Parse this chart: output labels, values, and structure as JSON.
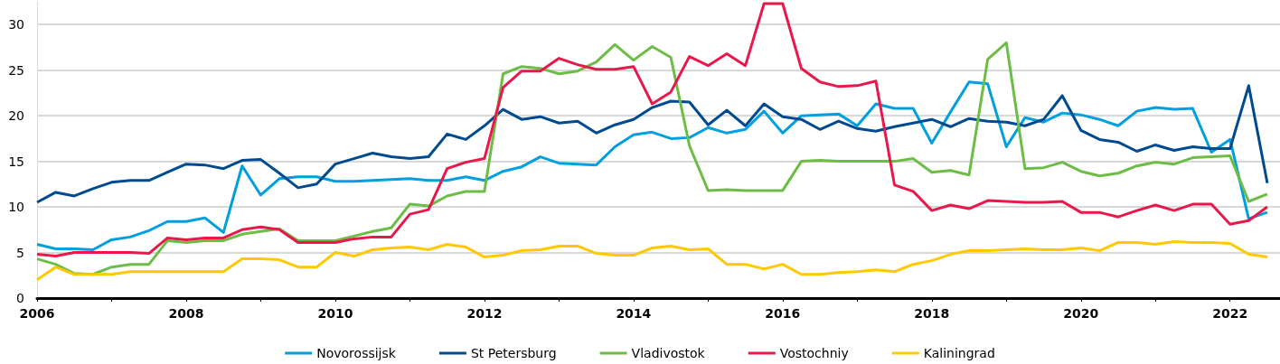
{
  "chart_data": {
    "type": "line",
    "x": [
      2006,
      2006.25,
      2006.5,
      2006.75,
      2007,
      2007.25,
      2007.5,
      2007.75,
      2008,
      2008.25,
      2008.5,
      2008.75,
      2009,
      2009.25,
      2009.5,
      2009.75,
      2010,
      2010.25,
      2010.5,
      2010.75,
      2011,
      2011.25,
      2011.5,
      2011.75,
      2012,
      2012.25,
      2012.5,
      2012.75,
      2013,
      2013.25,
      2013.5,
      2013.75,
      2014,
      2014.25,
      2014.5,
      2014.75,
      2015,
      2015.25,
      2015.5,
      2015.75,
      2016,
      2016.25,
      2016.5,
      2016.75,
      2017,
      2017.25,
      2017.5,
      2017.75,
      2018,
      2018.25,
      2018.5,
      2018.75,
      2019,
      2019.25,
      2019.5,
      2019.75,
      2020,
      2020.25,
      2020.5,
      2020.75,
      2021,
      2021.25,
      2021.5,
      2021.75,
      2022,
      2022.25,
      2022.5
    ],
    "series": [
      {
        "name": "Novorossijsk",
        "color": "#009fdf",
        "values": [
          5.9,
          5.4,
          5.4,
          5.3,
          6.4,
          6.7,
          7.4,
          8.4,
          8.4,
          8.8,
          7.2,
          14.5,
          11.3,
          13.1,
          13.3,
          13.3,
          12.8,
          12.8,
          12.9,
          13.0,
          13.1,
          12.9,
          12.9,
          13.3,
          12.9,
          13.9,
          14.4,
          15.5,
          14.8,
          14.7,
          14.6,
          16.6,
          17.9,
          18.2,
          17.5,
          17.6,
          18.7,
          18.1,
          18.5,
          20.5,
          18.1,
          20.0,
          20.1,
          20.2,
          18.9,
          21.3,
          20.8,
          20.8,
          17.0,
          20.4,
          23.7,
          23.5,
          16.6,
          19.8,
          19.3,
          20.3,
          20.1,
          19.6,
          18.9,
          20.5,
          20.9,
          20.7,
          20.8,
          16.0,
          17.4,
          8.7,
          9.4
        ]
      },
      {
        "name": "St Petersburg",
        "color": "#004a8f",
        "values": [
          10.5,
          11.6,
          11.2,
          12.0,
          12.7,
          12.9,
          12.9,
          13.8,
          14.7,
          14.6,
          14.2,
          15.1,
          15.2,
          13.7,
          12.1,
          12.5,
          14.7,
          15.3,
          15.9,
          15.5,
          15.3,
          15.5,
          18.0,
          17.4,
          18.9,
          20.7,
          19.6,
          19.9,
          19.2,
          19.4,
          18.1,
          19.0,
          19.6,
          20.9,
          21.6,
          21.5,
          19.0,
          20.6,
          18.9,
          21.3,
          19.9,
          19.6,
          18.5,
          19.4,
          18.6,
          18.3,
          18.8,
          19.2,
          19.6,
          18.8,
          19.7,
          19.4,
          19.3,
          18.9,
          19.6,
          22.2,
          18.4,
          17.4,
          17.1,
          16.1,
          16.8,
          16.2,
          16.6,
          16.4,
          16.4,
          23.3,
          12.6
        ]
      },
      {
        "name": "Vladivostok",
        "color": "#6cbd45",
        "values": [
          4.3,
          3.7,
          2.7,
          2.6,
          3.4,
          3.7,
          3.7,
          6.3,
          6.1,
          6.3,
          6.3,
          7.0,
          7.3,
          7.6,
          6.3,
          6.3,
          6.3,
          6.8,
          7.3,
          7.7,
          10.3,
          10.1,
          11.2,
          11.7,
          11.7,
          24.6,
          25.4,
          25.2,
          24.6,
          24.9,
          25.9,
          27.8,
          26.1,
          27.6,
          26.4,
          16.7,
          11.8,
          11.9,
          11.8,
          11.8,
          11.8,
          15.0,
          15.1,
          15.0,
          15.0,
          15.0,
          15.0,
          15.3,
          13.8,
          14.0,
          13.5,
          26.2,
          28.0,
          14.2,
          14.3,
          14.9,
          13.9,
          13.4,
          13.7,
          14.5,
          14.9,
          14.7,
          15.4,
          15.5,
          15.6,
          10.6,
          11.4
        ]
      },
      {
        "name": "Vostochniy",
        "color": "#e8194a",
        "values": [
          4.8,
          4.6,
          5.0,
          5.0,
          5.0,
          5.0,
          4.9,
          6.6,
          6.4,
          6.6,
          6.6,
          7.5,
          7.8,
          7.5,
          6.1,
          6.1,
          6.1,
          6.5,
          6.7,
          6.7,
          9.2,
          9.7,
          14.2,
          14.9,
          15.3,
          23.1,
          24.9,
          24.9,
          26.3,
          25.6,
          25.1,
          25.1,
          25.4,
          21.3,
          22.6,
          26.5,
          25.5,
          26.8,
          25.5,
          32.3,
          32.3,
          25.2,
          23.7,
          23.2,
          23.3,
          23.8,
          12.4,
          11.7,
          9.6,
          10.2,
          9.8,
          10.7,
          10.6,
          10.5,
          10.5,
          10.6,
          9.4,
          9.4,
          8.9,
          9.6,
          10.2,
          9.6,
          10.3,
          10.3,
          8.1,
          8.5,
          10.0
        ]
      },
      {
        "name": "Kaliningrad",
        "color": "#ffc800",
        "values": [
          2.0,
          3.4,
          2.6,
          2.6,
          2.6,
          2.9,
          2.9,
          2.9,
          2.9,
          2.9,
          2.9,
          4.3,
          4.3,
          4.2,
          3.4,
          3.4,
          5.0,
          4.6,
          5.3,
          5.5,
          5.6,
          5.3,
          5.9,
          5.6,
          4.5,
          4.7,
          5.2,
          5.3,
          5.7,
          5.7,
          4.9,
          4.7,
          4.7,
          5.5,
          5.7,
          5.3,
          5.4,
          3.7,
          3.7,
          3.2,
          3.7,
          2.6,
          2.6,
          2.8,
          2.9,
          3.1,
          2.9,
          3.7,
          4.1,
          4.8,
          5.2,
          5.2,
          5.3,
          5.4,
          5.3,
          5.3,
          5.5,
          5.2,
          6.1,
          6.1,
          5.9,
          6.2,
          6.1,
          6.1,
          6.0,
          4.8,
          4.5
        ]
      }
    ],
    "xlim": [
      2006,
      2022.67
    ],
    "xticks": [
      2006,
      {
        "value": 2007,
        "label": null
      },
      2008,
      {
        "value": 2009,
        "label": null
      },
      2010,
      {
        "value": 2011,
        "label": null
      },
      2012,
      {
        "value": 2013,
        "label": null
      },
      2014,
      {
        "value": 2015,
        "label": null
      },
      2016,
      {
        "value": 2017,
        "label": null
      },
      2018,
      {
        "value": 2019,
        "label": null
      },
      2020,
      {
        "value": 2021,
        "label": null
      },
      2022
    ],
    "ylim": [
      0,
      32.5
    ],
    "yticks": [
      0,
      5,
      10,
      15,
      20,
      25,
      30
    ],
    "grid": "y",
    "legend": "bottom",
    "marker": "none",
    "line_style": "solid"
  }
}
